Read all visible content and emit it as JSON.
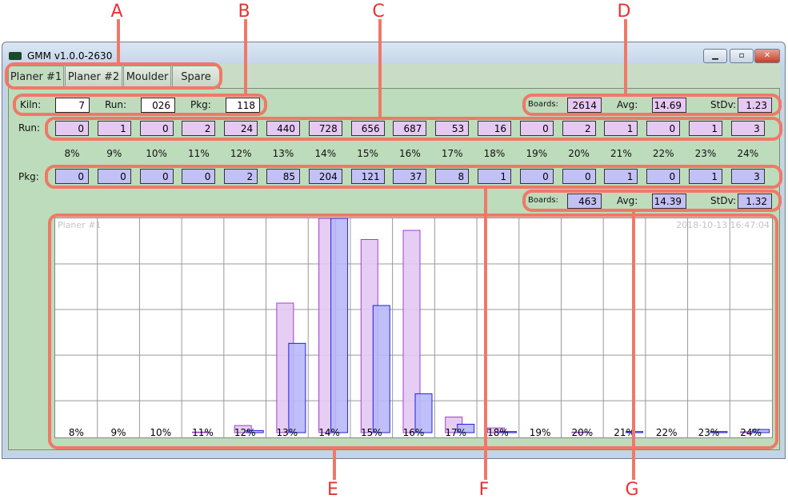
{
  "window": {
    "title": "GMM v1.0.0-2630",
    "minimize": "▁",
    "maximize": "▫",
    "close": "✕"
  },
  "tabs": [
    {
      "label": "Planer #1",
      "active": true
    },
    {
      "label": "Planer #2"
    },
    {
      "label": "Moulder"
    },
    {
      "label": "Spare"
    }
  ],
  "info": {
    "kiln_label": "Kiln:",
    "kiln": "7",
    "run_label": "Run:",
    "run": "026",
    "pkg_label": "Pkg:",
    "pkg": "118"
  },
  "run_stats": {
    "boards_label": "Boards:",
    "boards": "2614",
    "avg_label": "Avg:",
    "avg": "14.69",
    "stdv_label": "StDv:",
    "stdv": "1.23"
  },
  "pkg_stats": {
    "boards_label": "Boards:",
    "boards": "463",
    "avg_label": "Avg:",
    "avg": "14.39",
    "stdv_label": "StDv:",
    "stdv": "1.32"
  },
  "row_labels": {
    "run": "Run:",
    "pkg": "Pkg:"
  },
  "categories": [
    "8%",
    "9%",
    "10%",
    "11%",
    "12%",
    "13%",
    "14%",
    "15%",
    "16%",
    "17%",
    "18%",
    "19%",
    "20%",
    "21%",
    "22%",
    "23%",
    "24%"
  ],
  "run_counts": [
    0,
    1,
    0,
    2,
    24,
    440,
    728,
    656,
    687,
    53,
    16,
    0,
    2,
    1,
    0,
    1,
    3
  ],
  "pkg_counts": [
    0,
    0,
    0,
    0,
    2,
    85,
    204,
    121,
    37,
    8,
    1,
    0,
    0,
    1,
    0,
    1,
    3
  ],
  "chart": {
    "title": "Planer #1",
    "timestamp": "2018-10-13 16:47:04",
    "run_color": "#e3c8f2",
    "run_stroke": "#a040d0",
    "pkg_color": "#b8b8f8",
    "pkg_stroke": "#2020e0"
  },
  "callouts": [
    "A",
    "B",
    "C",
    "D",
    "E",
    "F",
    "G"
  ]
}
